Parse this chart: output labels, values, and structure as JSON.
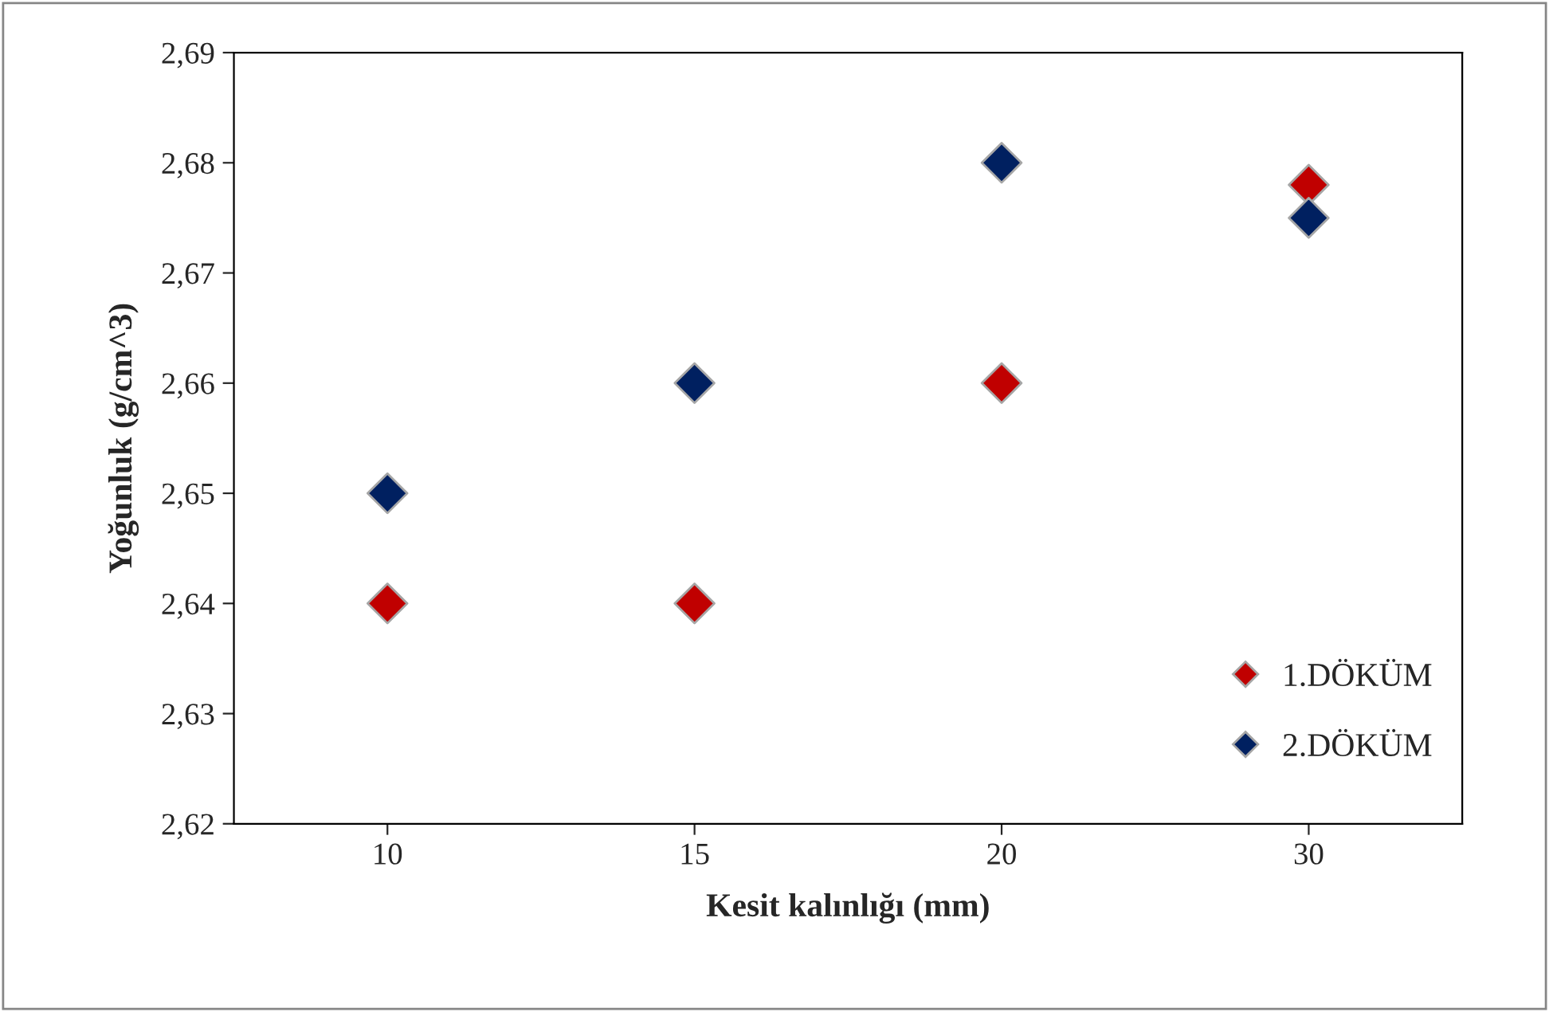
{
  "chart_data": {
    "type": "scatter",
    "xlabel": "Kesit kalınlığı (mm)",
    "ylabel": "Yoğunluk (g/cm^3)",
    "categories": [
      "10",
      "15",
      "20",
      "30"
    ],
    "series": [
      {
        "name": "1.DÖKÜM",
        "color": "#c00000",
        "values": [
          2.64,
          2.64,
          2.66,
          2.678
        ]
      },
      {
        "name": "2.DÖKÜM",
        "color": "#002060",
        "values": [
          2.65,
          2.66,
          2.68,
          2.675
        ]
      }
    ],
    "ylim": [
      2.62,
      2.69
    ],
    "yticks": [
      {
        "value": 2.62,
        "label": "2,62"
      },
      {
        "value": 2.63,
        "label": "2,63"
      },
      {
        "value": 2.64,
        "label": "2,64"
      },
      {
        "value": 2.65,
        "label": "2,65"
      },
      {
        "value": 2.66,
        "label": "2,66"
      },
      {
        "value": 2.67,
        "label": "2,67"
      },
      {
        "value": 2.68,
        "label": "2,68"
      },
      {
        "value": 2.69,
        "label": "2,69"
      }
    ],
    "marker": "diamond",
    "legend": "bottom right",
    "grid": false
  }
}
